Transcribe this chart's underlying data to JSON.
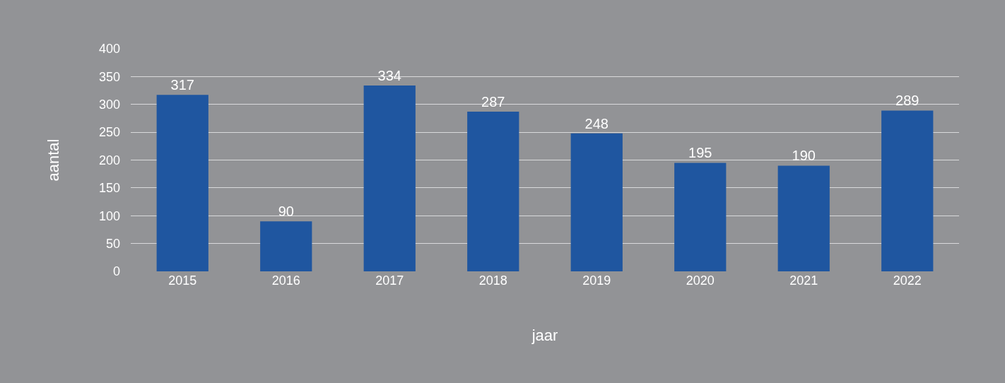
{
  "chart_data": {
    "type": "bar",
    "xlabel": "jaar",
    "ylabel": "aantal",
    "categories": [
      "2015",
      "2016",
      "2017",
      "2018",
      "2019",
      "2020",
      "2021",
      "2022"
    ],
    "values": [
      317,
      90,
      334,
      287,
      248,
      195,
      190,
      289
    ],
    "color": "#1f56a0",
    "ylim": [
      0,
      400
    ],
    "yticks": [
      0,
      50,
      100,
      150,
      200,
      250,
      300,
      350,
      400
    ],
    "grid": "y",
    "data_labels": true
  }
}
